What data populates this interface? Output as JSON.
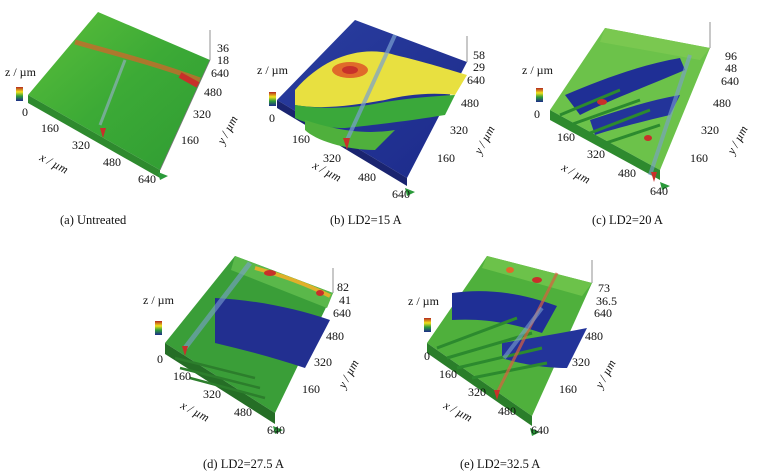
{
  "panels": [
    {
      "id": "a",
      "caption": "(a) Untreated",
      "z_label": "z / µm",
      "x_label": "x / µm",
      "y_label": "y / µm",
      "z_ticks": [
        "36",
        "18"
      ],
      "z_zero": "0",
      "y_ticks": [
        "640",
        "480",
        "320",
        "160"
      ],
      "x_ticks": [
        "160",
        "320",
        "480",
        "640"
      ]
    },
    {
      "id": "b",
      "caption": "(b) LD2=15 A",
      "z_label": "z / µm",
      "x_label": "x / µm",
      "y_label": "y / µm",
      "z_ticks": [
        "58",
        "29"
      ],
      "z_zero": "0",
      "y_ticks": [
        "640",
        "480",
        "320",
        "160"
      ],
      "x_ticks": [
        "160",
        "320",
        "480",
        "640"
      ]
    },
    {
      "id": "c",
      "caption": "(c) LD2=20 A",
      "z_label": "z / µm",
      "x_label": "x / µm",
      "y_label": "y / µm",
      "z_ticks": [
        "96",
        "48"
      ],
      "z_zero": "0",
      "y_ticks": [
        "640",
        "480",
        "320",
        "160"
      ],
      "x_ticks": [
        "160",
        "320",
        "480",
        "640"
      ]
    },
    {
      "id": "d",
      "caption": "(d) LD2=27.5 A",
      "z_label": "z / µm",
      "x_label": "x / µm",
      "y_label": "y / µm",
      "z_ticks": [
        "82",
        "41"
      ],
      "z_zero": "0",
      "y_ticks": [
        "640",
        "480",
        "320",
        "160"
      ],
      "x_ticks": [
        "160",
        "320",
        "480",
        "640"
      ]
    },
    {
      "id": "e",
      "caption": "(e) LD2=32.5 A",
      "z_label": "z / µm",
      "x_label": "x / µm",
      "y_label": "y / µm",
      "z_ticks": [
        "73",
        "36.5"
      ],
      "z_zero": "0",
      "y_ticks": [
        "640",
        "480",
        "320",
        "160"
      ],
      "x_ticks": [
        "160",
        "320",
        "480",
        "640"
      ]
    }
  ],
  "colors": {
    "red": "#c8302a",
    "yellow": "#f0e020",
    "green": "#3aa83a",
    "blue": "#1f2f95",
    "light_green": "#6cc24a"
  }
}
